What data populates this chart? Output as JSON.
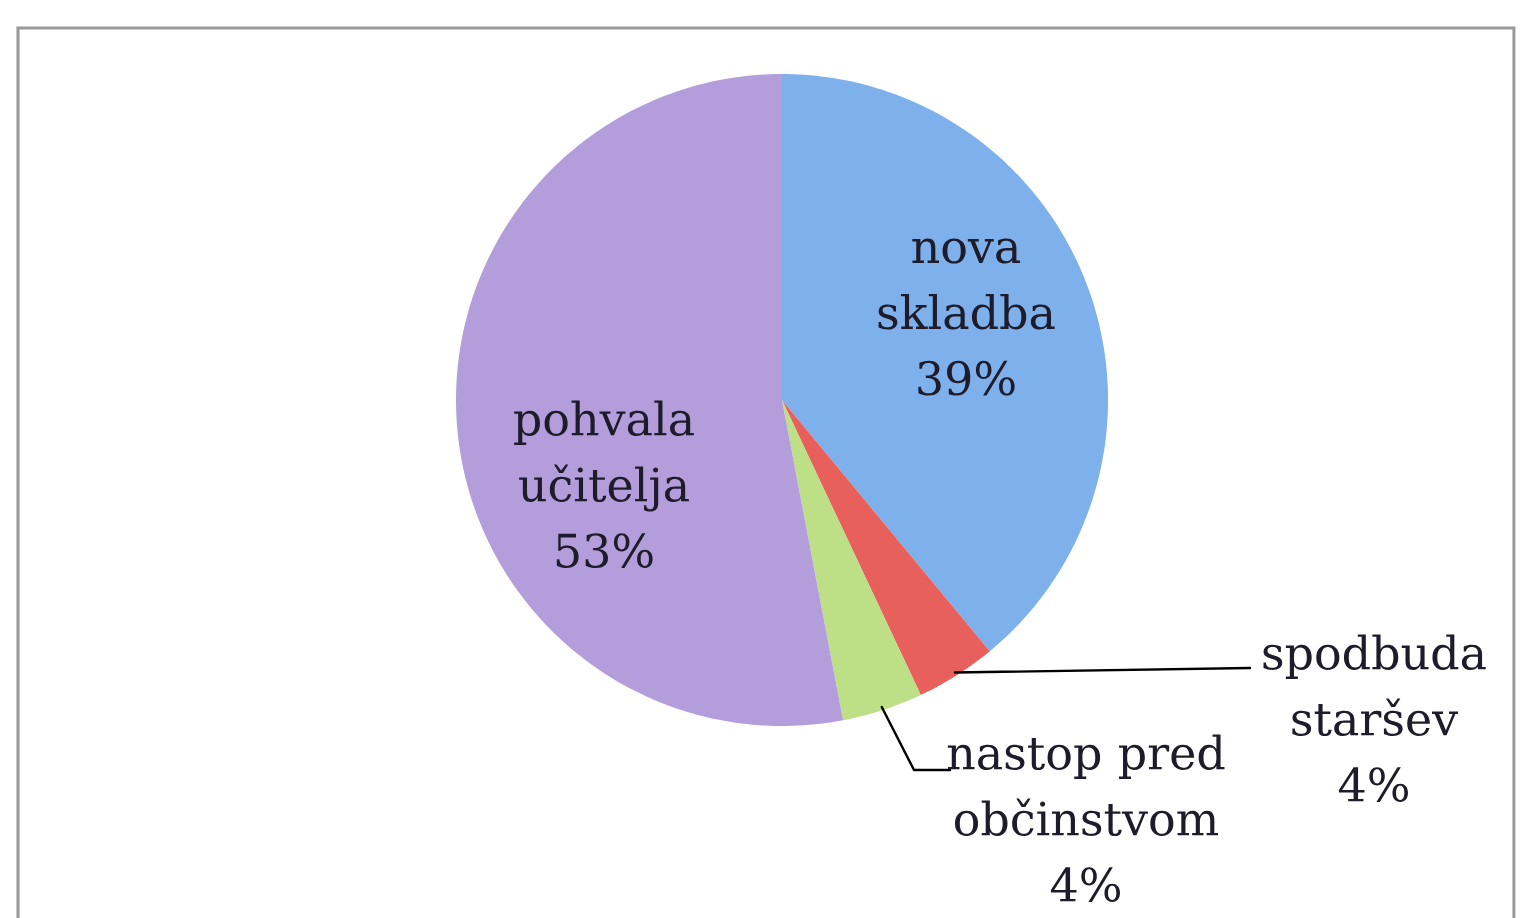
{
  "chart_data": {
    "type": "pie",
    "categories": [
      "nova skladba",
      "spodbuda staršev",
      "nastop pred občinstvom",
      "pohvala učitelja"
    ],
    "values": [
      39,
      4,
      4,
      53
    ],
    "colors": [
      "#7eb0ec",
      "#e8605c",
      "#bddf85",
      "#b49ddb"
    ],
    "value_labels": [
      "39%",
      "4%",
      "4%",
      "53%"
    ]
  }
}
